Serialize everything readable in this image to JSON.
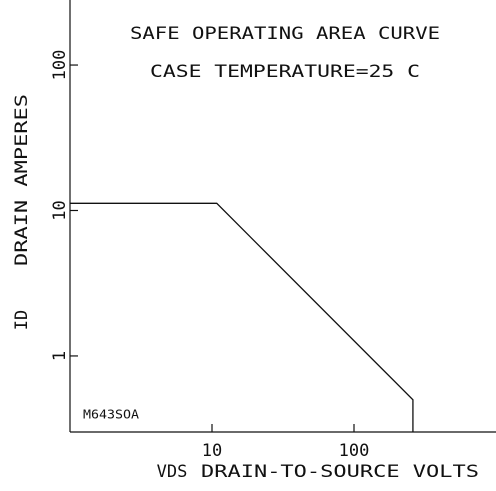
{
  "chart_data": {
    "type": "line",
    "title": "SAFE OPERATING AREA CURVE",
    "subtitle": "CASE TEMPERATURE=25 C",
    "annotation": "M643SOA",
    "x_label_short": "VDS",
    "x_label": "DRAIN-TO-SOURCE VOLTS",
    "y_label_short": "ID",
    "y_label": "DRAIN AMPERES",
    "log_x": true,
    "log_y": true,
    "xlim": [
      1,
      1000
    ],
    "ylim": [
      0.3,
      280
    ],
    "xticks": [
      10,
      100
    ],
    "yticks": [
      1,
      10,
      100
    ],
    "series": [
      {
        "color": "#111111",
        "x": [
          1,
          10.8,
          260,
          260
        ],
        "values": [
          11.2,
          11.2,
          0.5,
          0.3
        ]
      }
    ]
  }
}
